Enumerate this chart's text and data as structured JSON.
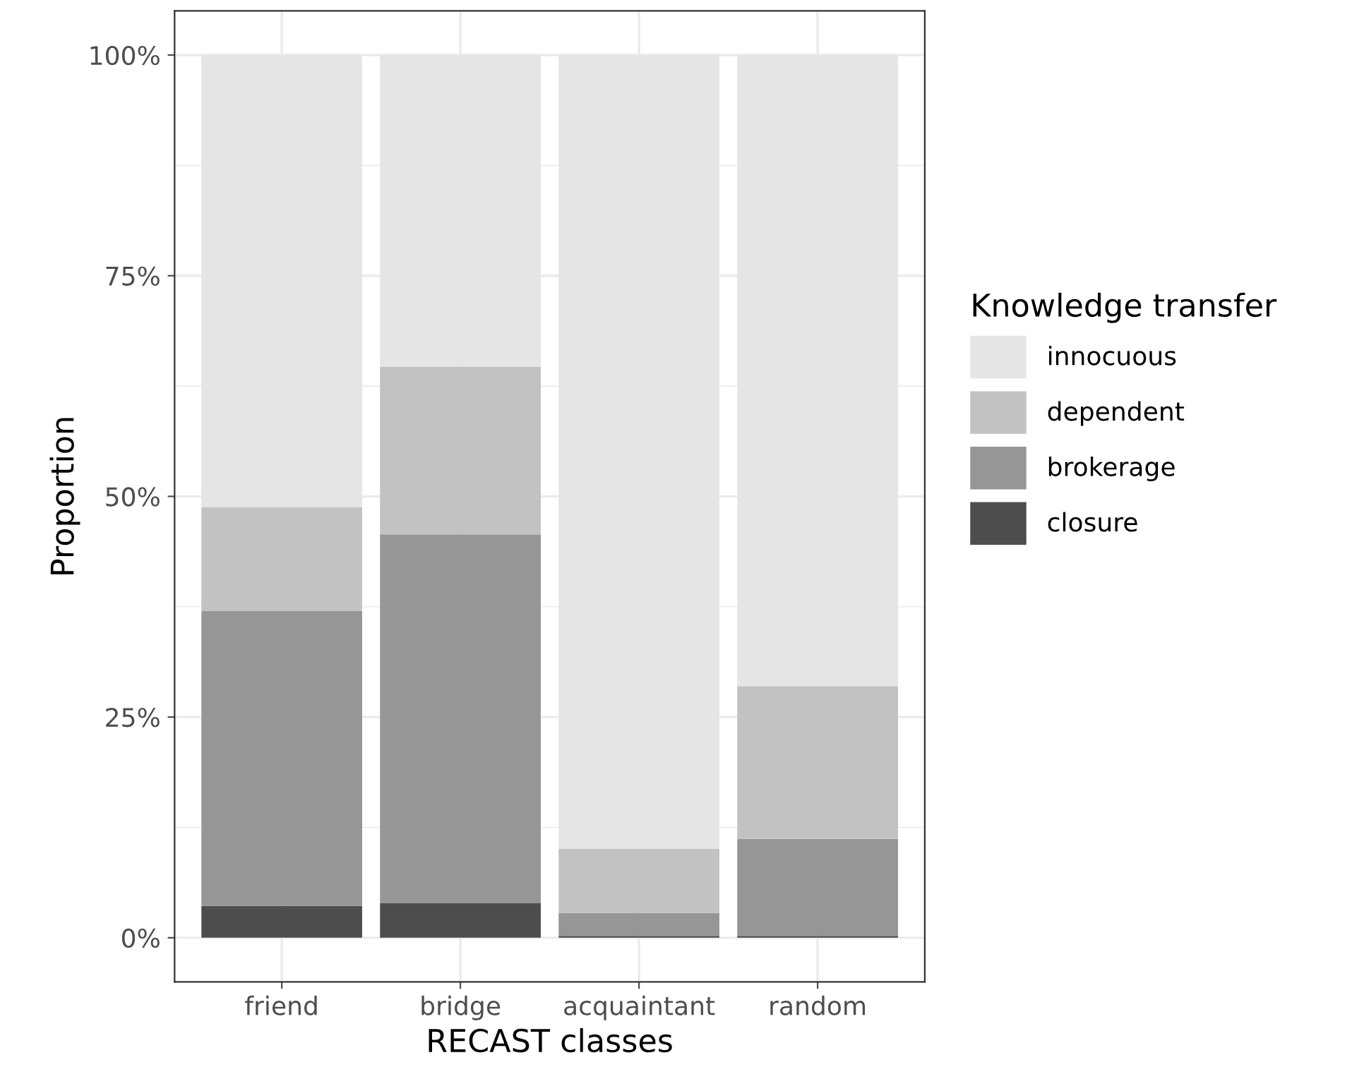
{
  "chart_data": {
    "type": "bar",
    "stacked": true,
    "xlabel": "RECAST classes",
    "ylabel": "Proportion",
    "legend_title": "Knowledge transfer",
    "legend": "right",
    "grid": true,
    "categories": [
      "friend",
      "bridge",
      "acquaintant",
      "random"
    ],
    "series": [
      {
        "name": "closure",
        "color": "#4d4d4d",
        "values": [
          3.6,
          3.9,
          0.2,
          0.2
        ]
      },
      {
        "name": "brokerage",
        "color": "#969696",
        "values": [
          33.4,
          41.8,
          2.6,
          11.0
        ]
      },
      {
        "name": "dependent",
        "color": "#c2c2c2",
        "values": [
          11.8,
          19.0,
          7.3,
          17.3
        ]
      },
      {
        "name": "innocuous",
        "color": "#e5e5e5",
        "values": [
          51.2,
          35.3,
          89.9,
          71.5
        ]
      }
    ],
    "ylim": [
      -5,
      105
    ],
    "yticks": [
      {
        "value": 0,
        "label": "0%"
      },
      {
        "value": 25,
        "label": "25%"
      },
      {
        "value": 50,
        "label": "50%"
      },
      {
        "value": 75,
        "label": "75%"
      },
      {
        "value": 100,
        "label": "100%"
      }
    ]
  }
}
